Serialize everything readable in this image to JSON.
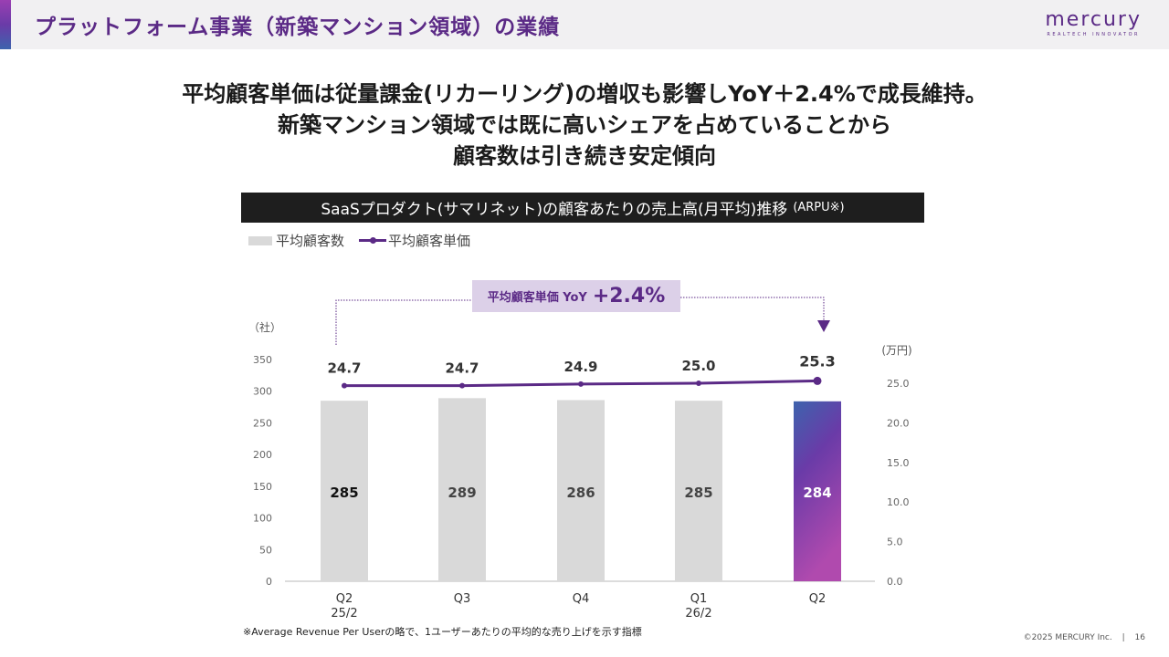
{
  "header": {
    "title": "プラットフォーム事業（新築マンション領域）の業績",
    "logo_main": "mercury",
    "logo_sub": "REALTECH INNOVATOR",
    "accent_gradient": [
      "#9a3fb2",
      "#3d63ad"
    ]
  },
  "headline": {
    "lines": [
      "平均顧客単価は従量課金(リカーリング)の増収も影響しYoY＋2.4%で成長維持。",
      "新築マンション領域では既に高いシェアを占めていることから",
      "顧客数は引き続き安定傾向"
    ]
  },
  "chart_title": {
    "main": "SaaSプロダクト(サマリネット)の顧客あたりの売上高(月平均)推移",
    "suffix": "(ARPU※)"
  },
  "annotation": {
    "label": "平均顧客単価 YoY",
    "value": "+2.4%"
  },
  "footnote": "※Average Revenue Per Userの略で、1ユーザーあたりの平均的な売り上げを示す指標",
  "footer": {
    "copyright": "©2025 MERCURY Inc.",
    "separator": "|",
    "page_number": "16"
  },
  "chart_data": {
    "type": "bar",
    "title": "SaaSプロダクト(サマリネット)の顧客あたりの売上高(月平均)推移 (ARPU※)",
    "categories": [
      "Q2",
      "Q3",
      "Q4",
      "Q1",
      "Q2"
    ],
    "category_sublabels": [
      "25/2",
      "",
      "",
      "26/2",
      ""
    ],
    "series": [
      {
        "name": "平均顧客数",
        "type": "bar",
        "axis": "left",
        "values": [
          285,
          289,
          286,
          285,
          284
        ],
        "color": "#d9d9d9",
        "highlight_last": true,
        "highlight_gradient": [
          "#3d63ad",
          "#6a3ba8",
          "#b04aae"
        ]
      },
      {
        "name": "平均顧客単価",
        "type": "line",
        "axis": "right",
        "values": [
          24.7,
          24.7,
          24.9,
          25.0,
          25.3
        ],
        "labels": [
          "24.7",
          "24.7",
          "24.9",
          "25.0",
          "25.3"
        ],
        "color": "#5b2a86"
      }
    ],
    "y_left": {
      "label": "（社）",
      "ticks": [
        0,
        50,
        100,
        150,
        200,
        250,
        300,
        350
      ],
      "ylim": [
        0,
        350
      ]
    },
    "y_right": {
      "label": "(万円)",
      "ticks": [
        "0.0",
        "5.0",
        "10.0",
        "15.0",
        "20.0",
        "25.0"
      ],
      "ylim": [
        0,
        25
      ]
    },
    "legend": "top-left",
    "grid": false
  }
}
